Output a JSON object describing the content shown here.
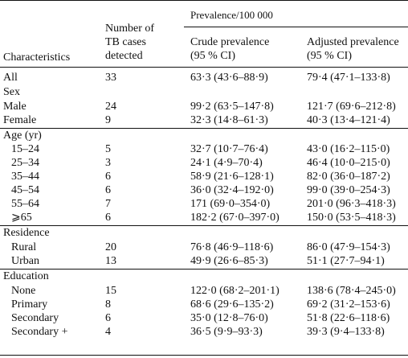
{
  "header": {
    "characteristics": "Characteristics",
    "cases_line1": "Number of",
    "cases_line2": "TB cases",
    "cases_line3": "detected",
    "prevalence_group": "Prevalence/100 000",
    "crude_line1": "Crude prevalence",
    "crude_line2": "(95 % CI)",
    "adjusted_line1": "Adjusted prevalence",
    "adjusted_line2": "(95 % CI)"
  },
  "rows": [
    {
      "label": "All",
      "indent": false,
      "cases": "33",
      "crude": "63·3 (43·6–88·9)",
      "adjusted": "79·4 (47·1–133·8)"
    },
    {
      "label": "Sex",
      "indent": false,
      "cases": "",
      "crude": "",
      "adjusted": ""
    },
    {
      "label": "Male",
      "indent": false,
      "cases": "24",
      "crude": "99·2 (63·5–147·8)",
      "adjusted": "121·7 (69·6–212·8)"
    },
    {
      "label": "Female",
      "indent": false,
      "cases": "9",
      "crude": "32·3 (14·8–61·3)",
      "adjusted": "40·3 (13·4–121·4)"
    },
    {
      "label": "Age (yr)",
      "indent": false,
      "cases": "",
      "crude": "",
      "adjusted": ""
    },
    {
      "label": "15–24",
      "indent": true,
      "cases": "5",
      "crude": "32·7 (10·7–76·4)",
      "adjusted": "43·0 (16·2–115·0)"
    },
    {
      "label": "25–34",
      "indent": true,
      "cases": "3",
      "crude": "24·1 (4·9–70·4)",
      "adjusted": "46·4 (10·0–215·0)"
    },
    {
      "label": "35–44",
      "indent": true,
      "cases": "6",
      "crude": "58·9 (21·6–128·1)",
      "adjusted": "82·0 (36·0–187·2)"
    },
    {
      "label": "45–54",
      "indent": true,
      "cases": "6",
      "crude": "36·0 (32·4–192·0)",
      "adjusted": "99·0 (39·0–254·3)"
    },
    {
      "label": "55–64",
      "indent": true,
      "cases": "7",
      "crude": "171 (69·0–354·0)",
      "adjusted": "201·0 (96·3–418·3)"
    },
    {
      "label": "⩾65",
      "indent": true,
      "cases": "6",
      "crude": "182·2 (67·0–397·0)",
      "adjusted": "150·0 (53·5–418·3)"
    },
    {
      "label": "Residence",
      "indent": false,
      "cases": "",
      "crude": "",
      "adjusted": ""
    },
    {
      "label": "Rural",
      "indent": true,
      "cases": "20",
      "crude": "76·8 (46·9–118·6)",
      "adjusted": "86·0 (47·9–154·3)"
    },
    {
      "label": "Urban",
      "indent": true,
      "cases": "13",
      "crude": "49·9 (26·6–85·3)",
      "adjusted": "51·1 (27·7–94·1)"
    },
    {
      "label": "Education",
      "indent": false,
      "cases": "",
      "crude": "",
      "adjusted": ""
    },
    {
      "label": "None",
      "indent": true,
      "cases": "15",
      "crude": "122·0 (68·2–201·1)",
      "adjusted": "138·6 (78·4–245·0)"
    },
    {
      "label": "Primary",
      "indent": true,
      "cases": "8",
      "crude": "68·6 (29·6–135·2)",
      "adjusted": "69·2 (31·2–153·6)"
    },
    {
      "label": "Secondary",
      "indent": true,
      "cases": "6",
      "crude": "35·0 (12·8–76·0)",
      "adjusted": "51·8 (22·6–118·6)"
    },
    {
      "label": "Secondary +",
      "indent": true,
      "cases": "4",
      "crude": "36·5 (9·9–93·3)",
      "adjusted": "39·3 (9·4–133·8)"
    }
  ]
}
